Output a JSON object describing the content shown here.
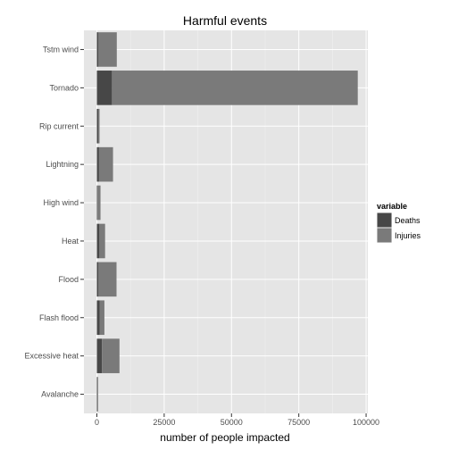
{
  "chart_data": {
    "type": "bar",
    "orientation": "horizontal",
    "stacked": true,
    "title": "Harmful events",
    "xlabel": "number of people impacted",
    "ylabel": "",
    "xlim": [
      0,
      100000
    ],
    "x_ticks": [
      0,
      25000,
      50000,
      75000,
      100000
    ],
    "x_tick_labels": [
      "0",
      "25000",
      "50000",
      "75000",
      "100000"
    ],
    "categories": [
      "Avalanche",
      "Excessive heat",
      "Flash flood",
      "Flood",
      "Heat",
      "High wind",
      "Lightning",
      "Rip current",
      "Tornado",
      "Tstm wind"
    ],
    "series": [
      {
        "name": "Deaths",
        "color": "#474747",
        "values": [
          200,
          1900,
          1000,
          500,
          950,
          250,
          800,
          500,
          5600,
          500
        ]
      },
      {
        "name": "Injuries",
        "color": "#7a7a7a",
        "values": [
          180,
          6500,
          1800,
          6800,
          2100,
          1100,
          5200,
          500,
          91300,
          6900
        ]
      }
    ],
    "legend": {
      "title": "variable",
      "position": "right"
    },
    "grid": true,
    "panel_color": "#e5e5e5",
    "grid_color": "#ffffff"
  }
}
